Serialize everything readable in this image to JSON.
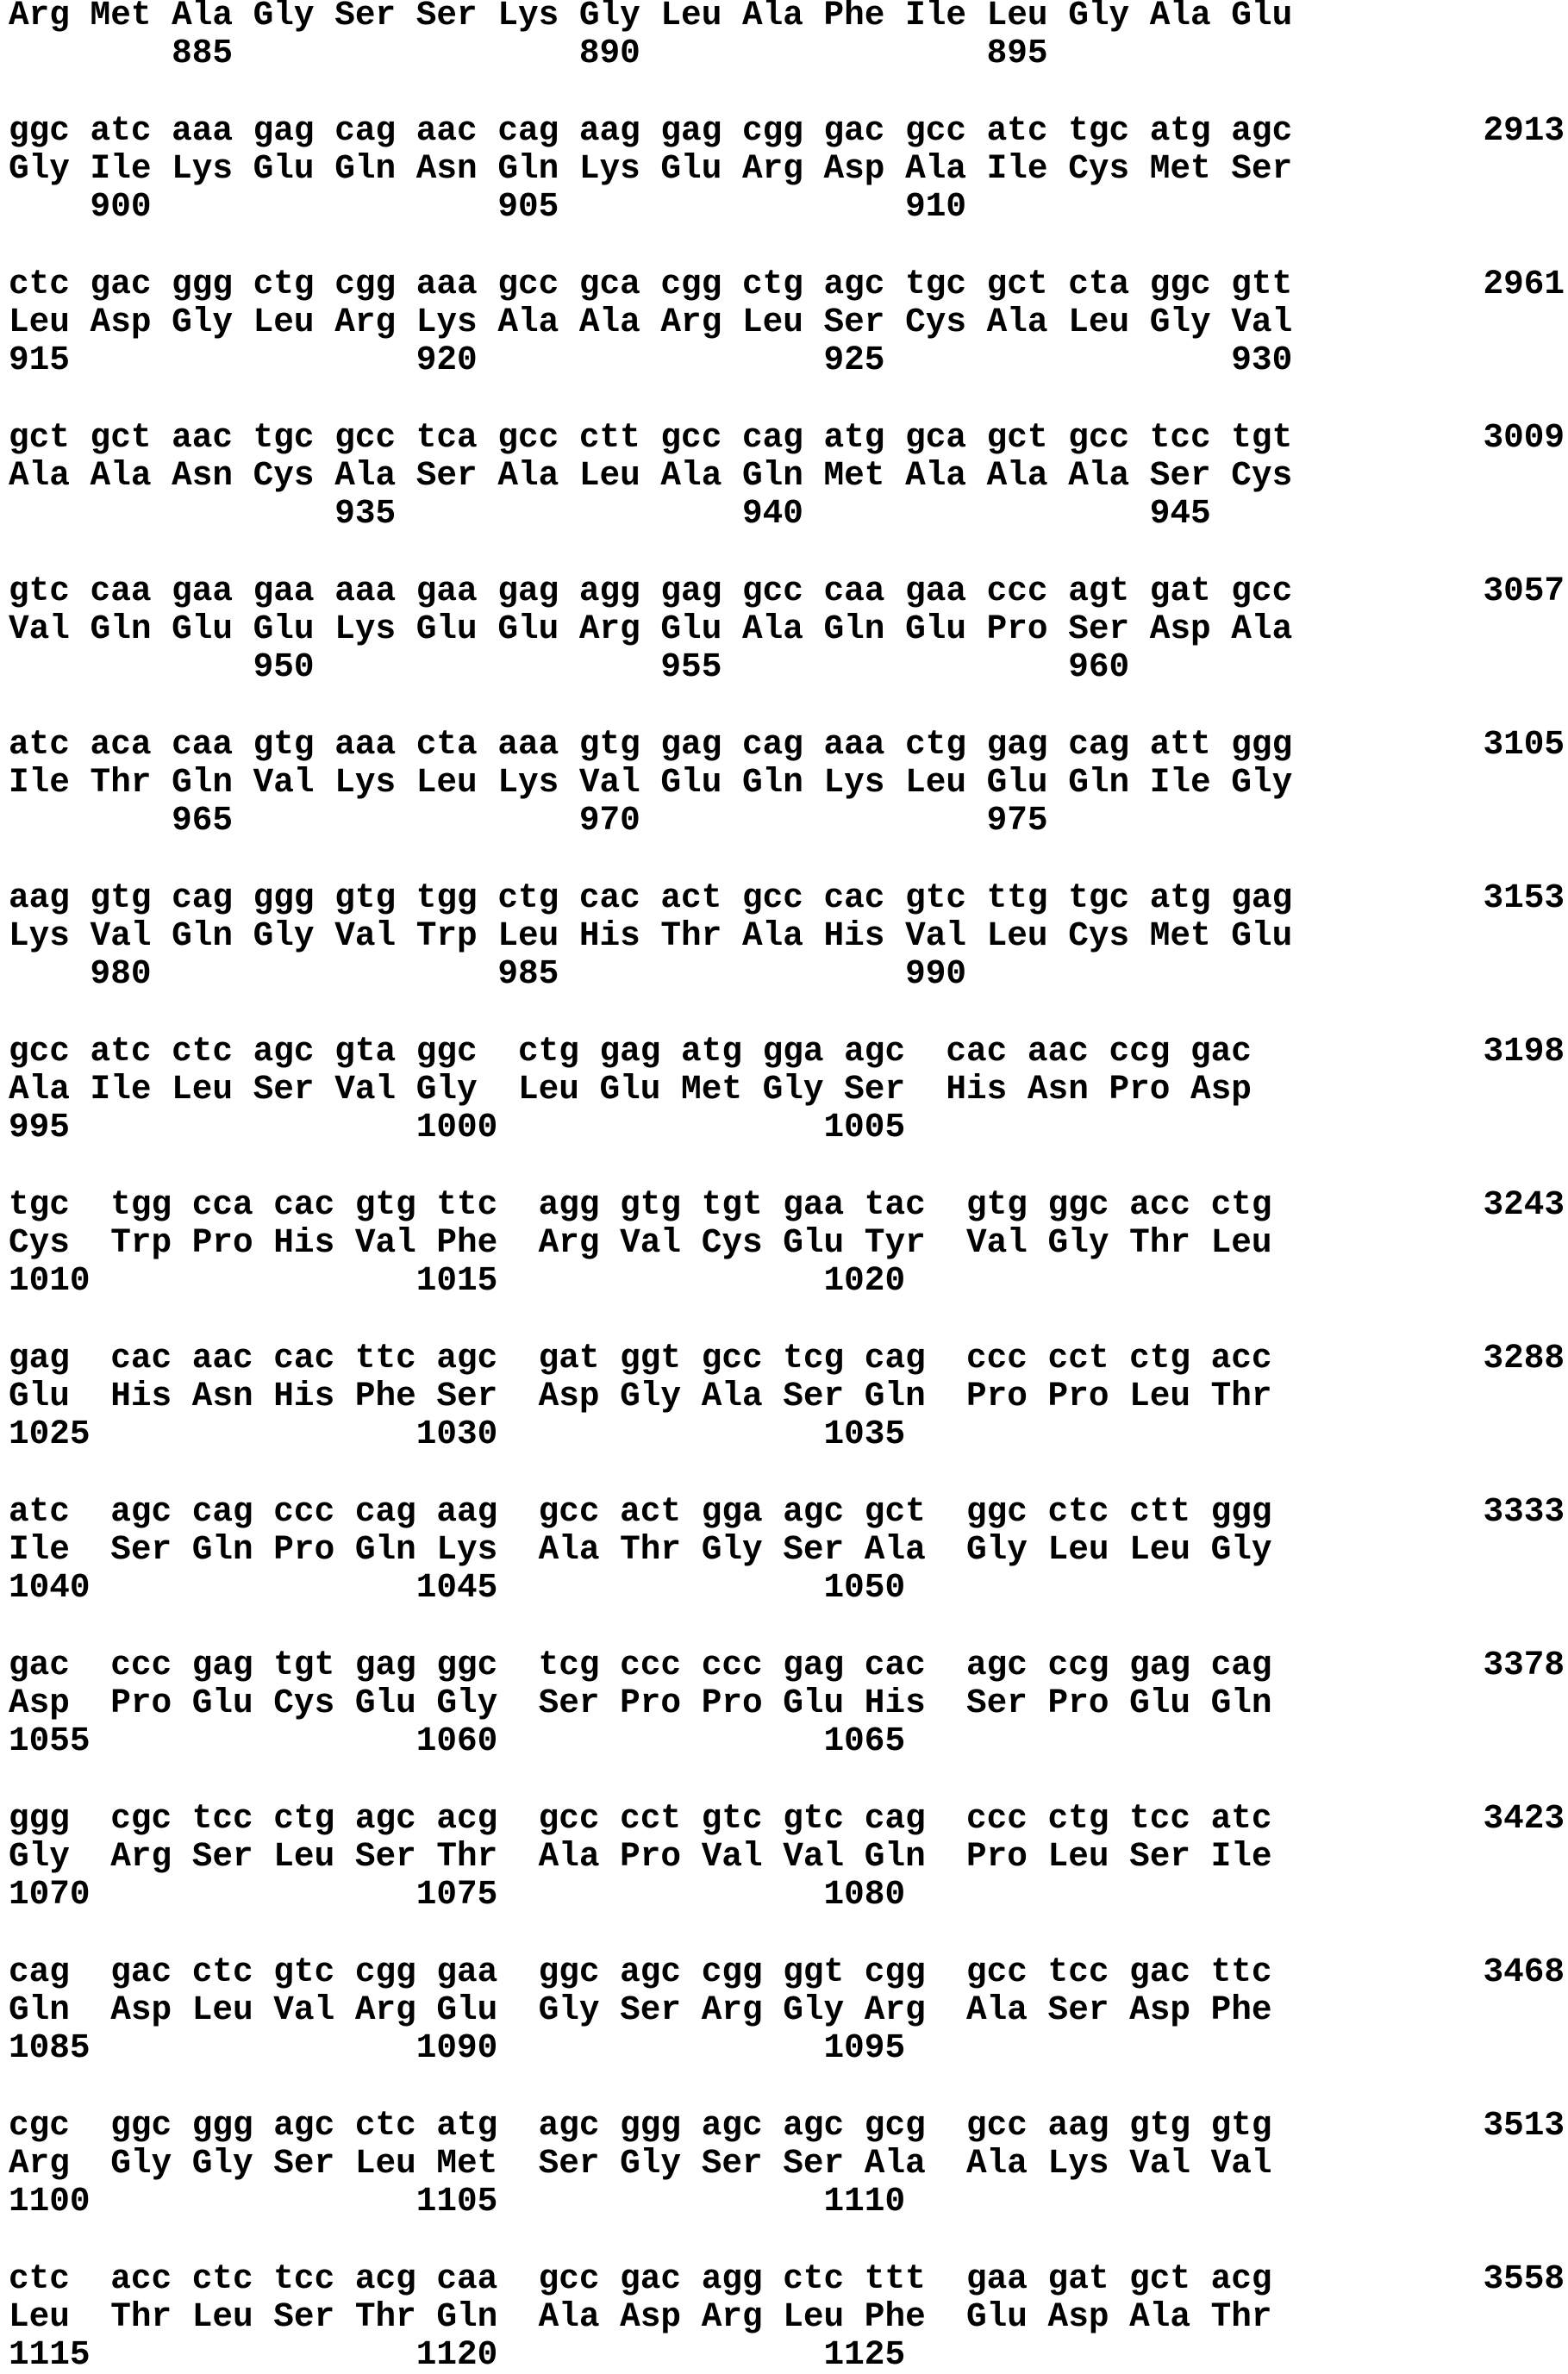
{
  "first_block": {
    "aa": "Arg Met Ala Gly Ser Ser Lys Gly Leu Ala Phe Ile Leu Gly Ala Glu",
    "num": "        885                 890                 895"
  },
  "blocks": [
    {
      "dna": "ggc atc aaa gag cag aac cag aag gag cgg gac gcc atc tgc atg agc",
      "pos": "2913",
      "aa": "Gly Ile Lys Glu Gln Asn Gln Lys Glu Arg Asp Ala Ile Cys Met Ser",
      "num": "    900                 905                 910"
    },
    {
      "dna": "ctc gac ggg ctg cgg aaa gcc gca cgg ctg agc tgc gct cta ggc gtt",
      "pos": "2961",
      "aa": "Leu Asp Gly Leu Arg Lys Ala Ala Arg Leu Ser Cys Ala Leu Gly Val",
      "num": "915                 920                 925                 930"
    },
    {
      "dna": "gct gct aac tgc gcc tca gcc ctt gcc cag atg gca gct gcc tcc tgt",
      "pos": "3009",
      "aa": "Ala Ala Asn Cys Ala Ser Ala Leu Ala Gln Met Ala Ala Ala Ser Cys",
      "num": "                935                 940                 945"
    },
    {
      "dna": "gtc caa gaa gaa aaa gaa gag agg gag gcc caa gaa ccc agt gat gcc",
      "pos": "3057",
      "aa": "Val Gln Glu Glu Lys Glu Glu Arg Glu Ala Gln Glu Pro Ser Asp Ala",
      "num": "            950                 955                 960"
    },
    {
      "dna": "atc aca caa gtg aaa cta aaa gtg gag cag aaa ctg gag cag att ggg",
      "pos": "3105",
      "aa": "Ile Thr Gln Val Lys Leu Lys Val Glu Gln Lys Leu Glu Gln Ile Gly",
      "num": "        965                 970                 975"
    },
    {
      "dna": "aag gtg cag ggg gtg tgg ctg cac act gcc cac gtc ttg tgc atg gag",
      "pos": "3153",
      "aa": "Lys Val Gln Gly Val Trp Leu His Thr Ala His Val Leu Cys Met Glu",
      "num": "    980                 985                 990"
    },
    {
      "dna": "gcc atc ctc agc gta ggc  ctg gag atg gga agc  cac aac ccg gac",
      "pos": "3198",
      "aa": "Ala Ile Leu Ser Val Gly  Leu Glu Met Gly Ser  His Asn Pro Asp",
      "num": "995                 1000                1005"
    },
    {
      "dna": "tgc  tgg cca cac gtg ttc  agg gtg tgt gaa tac  gtg ggc acc ctg",
      "pos": "3243",
      "aa": "Cys  Trp Pro His Val Phe  Arg Val Cys Glu Tyr  Val Gly Thr Leu",
      "num": "1010                1015                1020"
    },
    {
      "dna": "gag  cac aac cac ttc agc  gat ggt gcc tcg cag  ccc cct ctg acc",
      "pos": "3288",
      "aa": "Glu  His Asn His Phe Ser  Asp Gly Ala Ser Gln  Pro Pro Leu Thr",
      "num": "1025                1030                1035"
    },
    {
      "dna": "atc  agc cag ccc cag aag  gcc act gga agc gct  ggc ctc ctt ggg",
      "pos": "3333",
      "aa": "Ile  Ser Gln Pro Gln Lys  Ala Thr Gly Ser Ala  Gly Leu Leu Gly",
      "num": "1040                1045                1050"
    },
    {
      "dna": "gac  ccc gag tgt gag ggc  tcg ccc ccc gag cac  agc ccg gag cag",
      "pos": "3378",
      "aa": "Asp  Pro Glu Cys Glu Gly  Ser Pro Pro Glu His  Ser Pro Glu Gln",
      "num": "1055                1060                1065"
    },
    {
      "dna": "ggg  cgc tcc ctg agc acg  gcc cct gtc gtc cag  ccc ctg tcc atc",
      "pos": "3423",
      "aa": "Gly  Arg Ser Leu Ser Thr  Ala Pro Val Val Gln  Pro Leu Ser Ile",
      "num": "1070                1075                1080"
    },
    {
      "dna": "cag  gac ctc gtc cgg gaa  ggc agc cgg ggt cgg  gcc tcc gac ttc",
      "pos": "3468",
      "aa": "Gln  Asp Leu Val Arg Glu  Gly Ser Arg Gly Arg  Ala Ser Asp Phe",
      "num": "1085                1090                1095"
    },
    {
      "dna": "cgc  ggc ggg agc ctc atg  agc ggg agc agc gcg  gcc aag gtg gtg",
      "pos": "3513",
      "aa": "Arg  Gly Gly Ser Leu Met  Ser Gly Ser Ser Ala  Ala Lys Val Val",
      "num": "1100                1105                1110"
    },
    {
      "dna": "ctc  acc ctc tcc acg caa  gcc gac agg ctc ttt  gaa gat gct acg",
      "pos": "3558",
      "aa": "Leu  Thr Leu Ser Thr Gln  Ala Asp Arg Leu Phe  Glu Asp Ala Thr",
      "num": "1115                1120                1125"
    }
  ]
}
